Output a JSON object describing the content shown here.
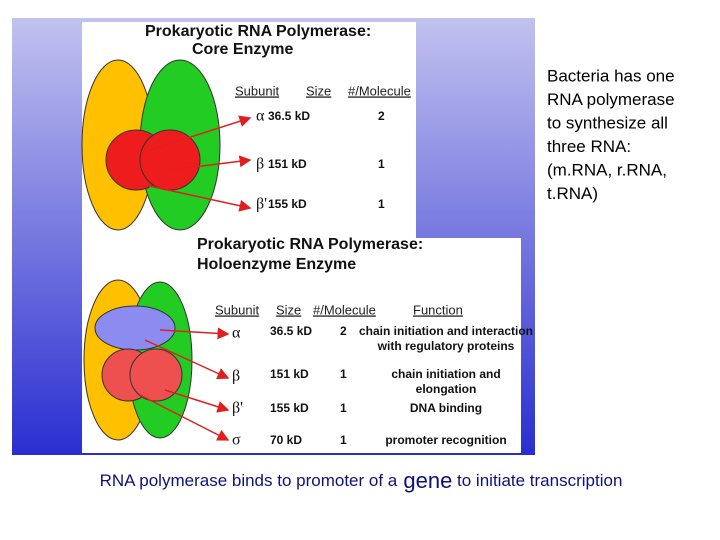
{
  "slide": {
    "core": {
      "title": [
        "Prokaryotic RNA Polymerase:",
        "Core Enzyme"
      ],
      "headers": [
        "Subunit",
        "Size",
        "#/Molecule"
      ],
      "rows": [
        {
          "subunit": "α",
          "size": "36.5 kD",
          "count": 2
        },
        {
          "subunit": "β",
          "size": "151 kD",
          "count": 1
        },
        {
          "subunit": "β'",
          "size": "155 kD",
          "count": 1
        }
      ]
    },
    "holo": {
      "title": [
        "Prokaryotic RNA Polymerase:",
        "Holoenzyme Enzyme"
      ],
      "headers": [
        "Subunit",
        "Size",
        "#/Molecule",
        "Function"
      ],
      "rows": [
        {
          "subunit": "α",
          "size": "36.5 kD",
          "count": 2,
          "function": [
            "chain initiation and interaction",
            "with regulatory proteins"
          ]
        },
        {
          "subunit": "β",
          "size": "151 kD",
          "count": 1,
          "function": [
            "chain initiation and",
            "elongation"
          ]
        },
        {
          "subunit": "β'",
          "size": "155 kD",
          "count": 1,
          "function": [
            "DNA binding"
          ]
        },
        {
          "subunit": "σ",
          "size": "70 kD",
          "count": 1,
          "function": [
            "promoter recognition"
          ]
        }
      ]
    },
    "side_note": [
      "Bacteria has one",
      "RNA polymerase",
      "to synthesize all",
      "three RNA:",
      "(m.RNA, r.RNA,",
      "t.RNA)"
    ],
    "caption": {
      "before": "RNA polymerase binds to promoter of a",
      "emphasis": "gene",
      "after": "to initiate transcription"
    }
  }
}
